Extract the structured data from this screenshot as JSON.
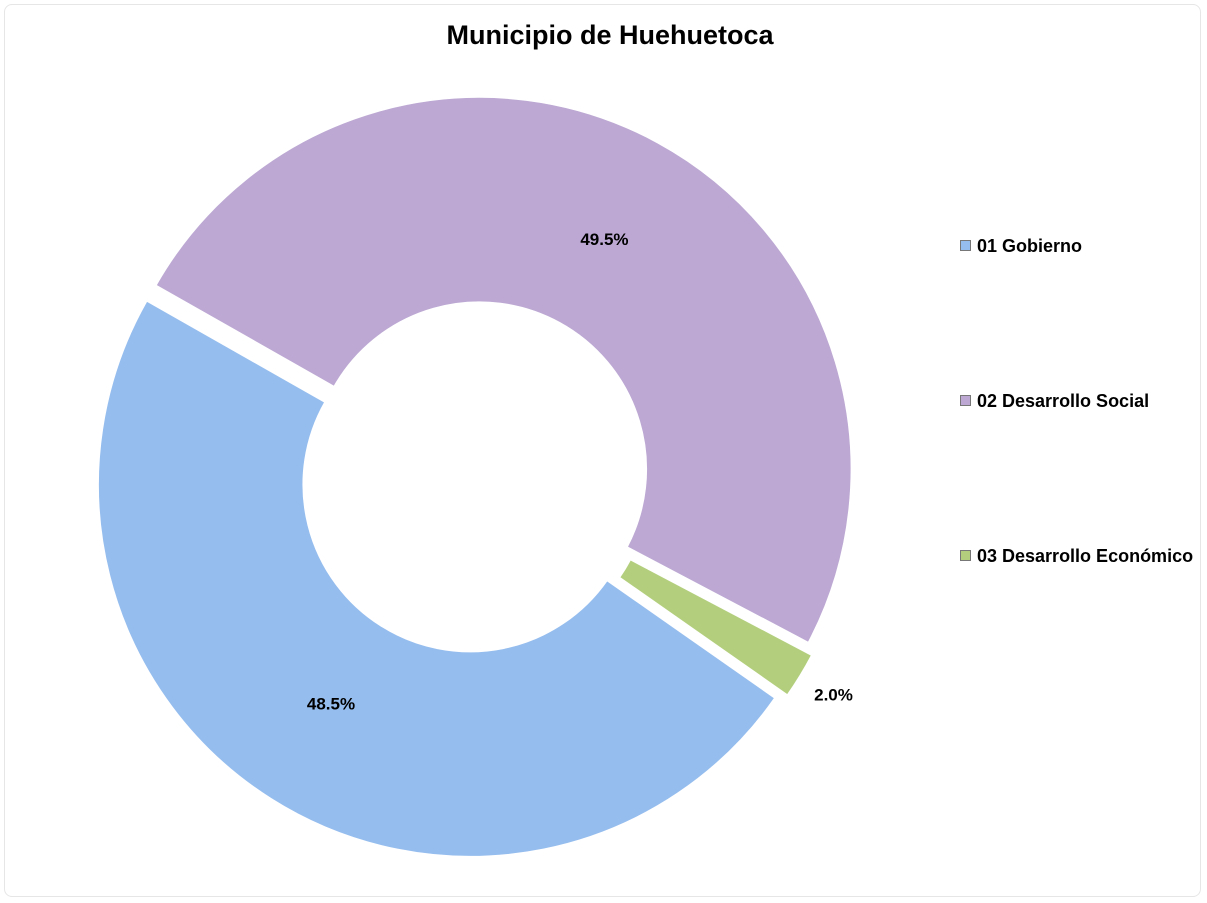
{
  "chart_data": {
    "type": "doughnut",
    "title": "Municipio de Huehuetoca",
    "categories": [
      "01 Gobierno",
      "02 Desarrollo Social",
      "03 Desarrollo Económico"
    ],
    "values": [
      48.5,
      49.5,
      2.0
    ],
    "value_labels": [
      "48.5%",
      "49.5%",
      "2.0%"
    ],
    "colors": [
      "#95bdee",
      "#bca8d3",
      "#b3cf7e"
    ],
    "legend": "right"
  }
}
